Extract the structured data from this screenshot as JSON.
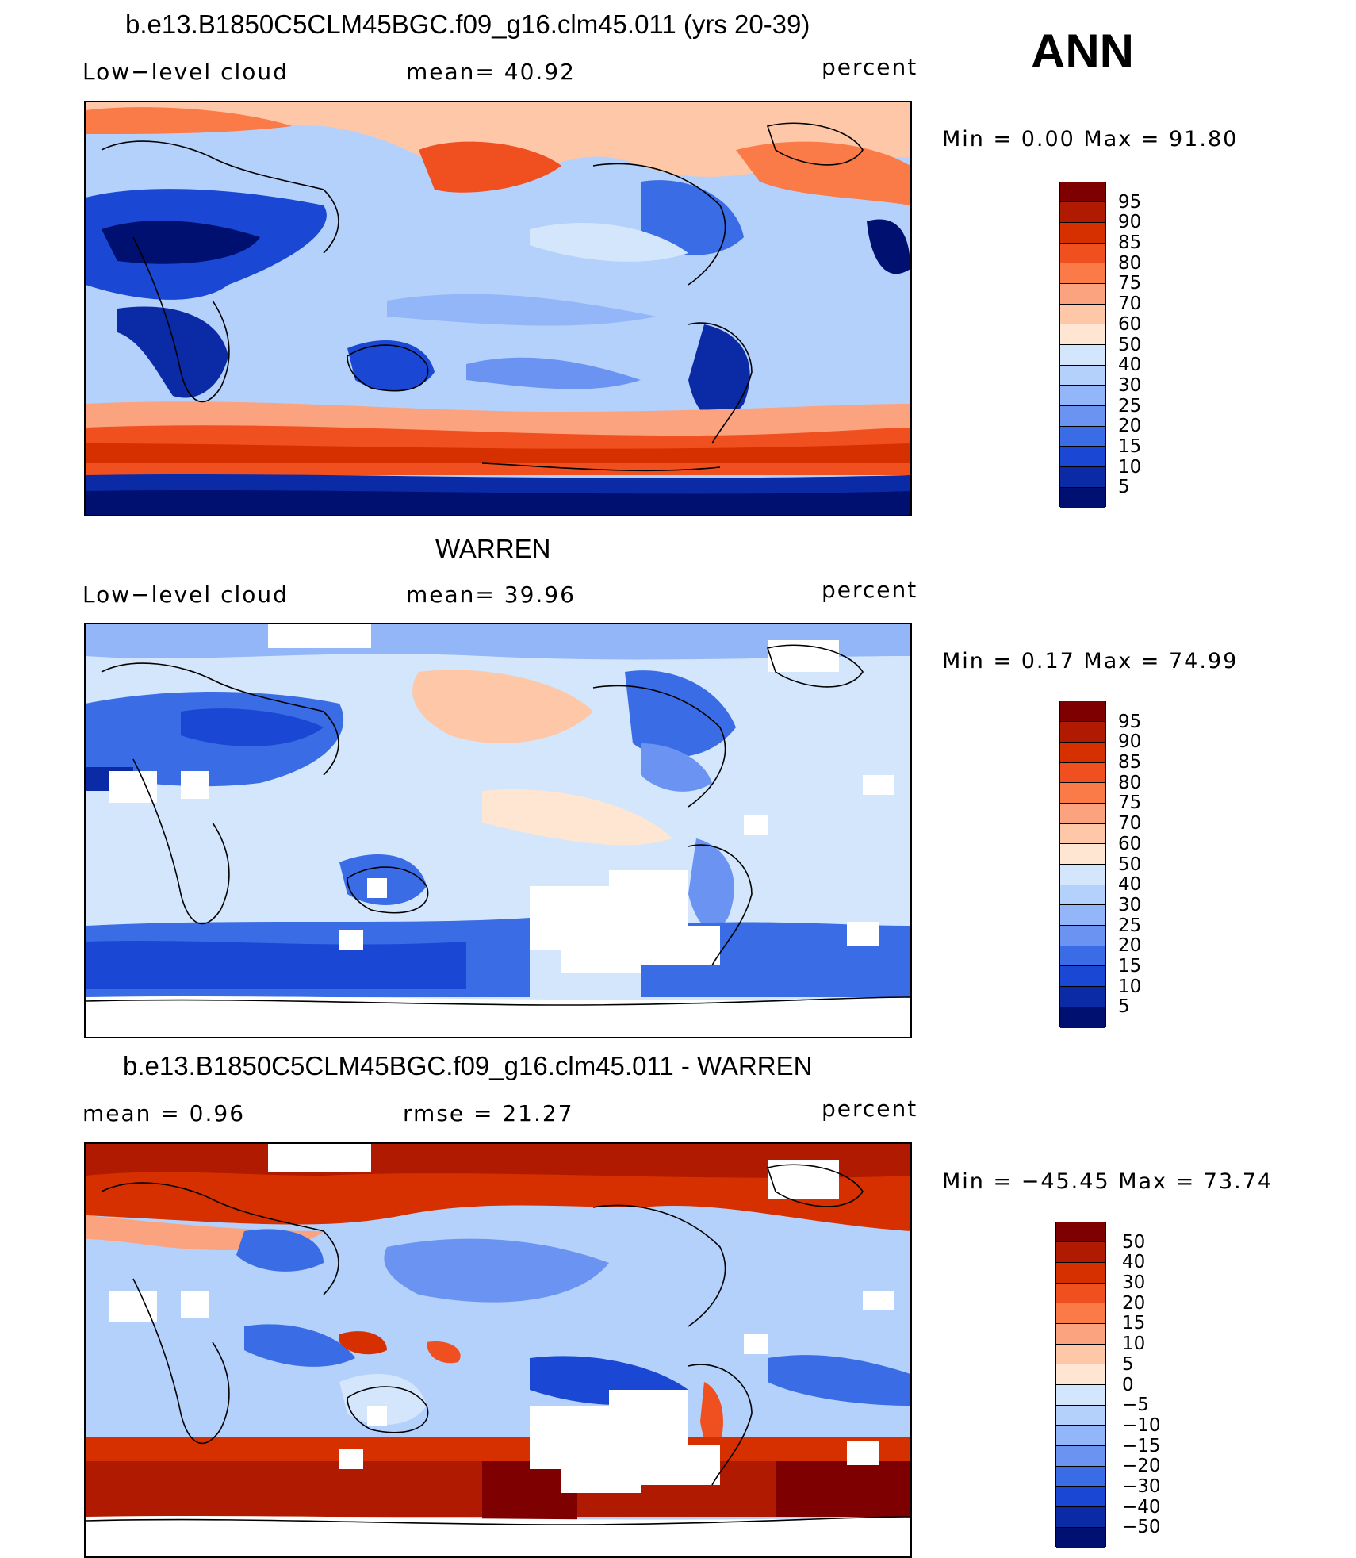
{
  "season": "ANN",
  "panels": [
    {
      "id": "model",
      "title": "b.e13.B1850C5CLM45BGC.f09_g16.clm45.011 (yrs 20-39)",
      "variable": "Low−level cloud",
      "stat_text": "mean=   40.92",
      "units": "percent",
      "minmax_text": "Min  =    0.00  Max  =   91.80",
      "colorbar": {
        "labels": [
          "95",
          "90",
          "85",
          "80",
          "75",
          "70",
          "60",
          "50",
          "40",
          "30",
          "25",
          "20",
          "15",
          "10",
          "5"
        ],
        "colors": [
          "#7f0000",
          "#b01a00",
          "#d73000",
          "#f05020",
          "#fa7a48",
          "#fba27e",
          "#fdc7a8",
          "#fee6d2",
          "#d3e6fb",
          "#b4d1fb",
          "#92b6f8",
          "#6b94f2",
          "#3a6ce6",
          "#1a48d4",
          "#0a2aa6",
          "#001070"
        ]
      },
      "data_range": {
        "min": 0.0,
        "max": 91.8,
        "mean": 40.92
      }
    },
    {
      "id": "obs",
      "title": "WARREN",
      "variable": "Low−level cloud",
      "stat_text": "mean=   39.96",
      "units": "percent",
      "minmax_text": "Min  =    0.17  Max  =   74.99",
      "colorbar": {
        "labels": [
          "95",
          "90",
          "85",
          "80",
          "75",
          "70",
          "60",
          "50",
          "40",
          "30",
          "25",
          "20",
          "15",
          "10",
          "5"
        ],
        "colors": [
          "#7f0000",
          "#b01a00",
          "#d73000",
          "#f05020",
          "#fa7a48",
          "#fba27e",
          "#fdc7a8",
          "#fee6d2",
          "#d3e6fb",
          "#b4d1fb",
          "#92b6f8",
          "#6b94f2",
          "#3a6ce6",
          "#1a48d4",
          "#0a2aa6",
          "#001070"
        ]
      },
      "data_range": {
        "min": 0.17,
        "max": 74.99,
        "mean": 39.96
      }
    },
    {
      "id": "diff",
      "title": "b.e13.B1850C5CLM45BGC.f09_g16.clm45.011 - WARREN",
      "variable": "mean =    0.96",
      "stat_text": "rmse  =   21.27",
      "units": "percent",
      "minmax_text": "Min  = −45.45  Max  =   73.74",
      "colorbar": {
        "labels": [
          "50",
          "40",
          "30",
          "20",
          "15",
          "10",
          "5",
          "0",
          "−5",
          "−10",
          "−15",
          "−20",
          "−30",
          "−40",
          "−50"
        ],
        "colors": [
          "#7f0000",
          "#b01a00",
          "#d73000",
          "#f05020",
          "#fa7a48",
          "#fba27e",
          "#fdc7a8",
          "#fee6d2",
          "#d3e6fb",
          "#b4d1fb",
          "#92b6f8",
          "#6b94f2",
          "#3a6ce6",
          "#1a48d4",
          "#0a2aa6",
          "#001070"
        ]
      },
      "data_range": {
        "min": -45.45,
        "max": 73.74,
        "mean": 0.96,
        "rmse": 21.27
      }
    }
  ]
}
